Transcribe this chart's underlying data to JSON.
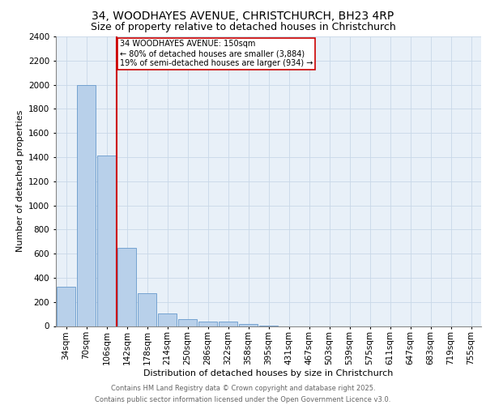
{
  "title_line1": "34, WOODHAYES AVENUE, CHRISTCHURCH, BH23 4RP",
  "title_line2": "Size of property relative to detached houses in Christchurch",
  "xlabel": "Distribution of detached houses by size in Christchurch",
  "ylabel": "Number of detached properties",
  "categories": [
    "34sqm",
    "70sqm",
    "106sqm",
    "142sqm",
    "178sqm",
    "214sqm",
    "250sqm",
    "286sqm",
    "322sqm",
    "358sqm",
    "395sqm",
    "431sqm",
    "467sqm",
    "503sqm",
    "539sqm",
    "575sqm",
    "611sqm",
    "647sqm",
    "683sqm",
    "719sqm",
    "755sqm"
  ],
  "bar_values": [
    325,
    2000,
    1415,
    650,
    270,
    105,
    55,
    40,
    35,
    20,
    5,
    0,
    0,
    0,
    0,
    0,
    0,
    0,
    0,
    0,
    0
  ],
  "bar_color": "#b8d0ea",
  "bar_edge_color": "#6699cc",
  "red_line_x": 2.5,
  "red_line_color": "#cc0000",
  "ylim": [
    0,
    2400
  ],
  "yticks": [
    0,
    200,
    400,
    600,
    800,
    1000,
    1200,
    1400,
    1600,
    1800,
    2000,
    2200,
    2400
  ],
  "annotation_box_text": "34 WOODHAYES AVENUE: 150sqm\n← 80% of detached houses are smaller (3,884)\n19% of semi-detached houses are larger (934) →",
  "annotation_box_color": "#cc0000",
  "grid_color": "#c8d8e8",
  "background_color": "#e8f0f8",
  "footer_text": "Contains HM Land Registry data © Crown copyright and database right 2025.\nContains public sector information licensed under the Open Government Licence v3.0.",
  "title_fontsize": 10,
  "subtitle_fontsize": 9,
  "axis_fontsize": 8,
  "tick_fontsize": 7.5,
  "footer_fontsize": 6,
  "ann_fontsize": 7
}
